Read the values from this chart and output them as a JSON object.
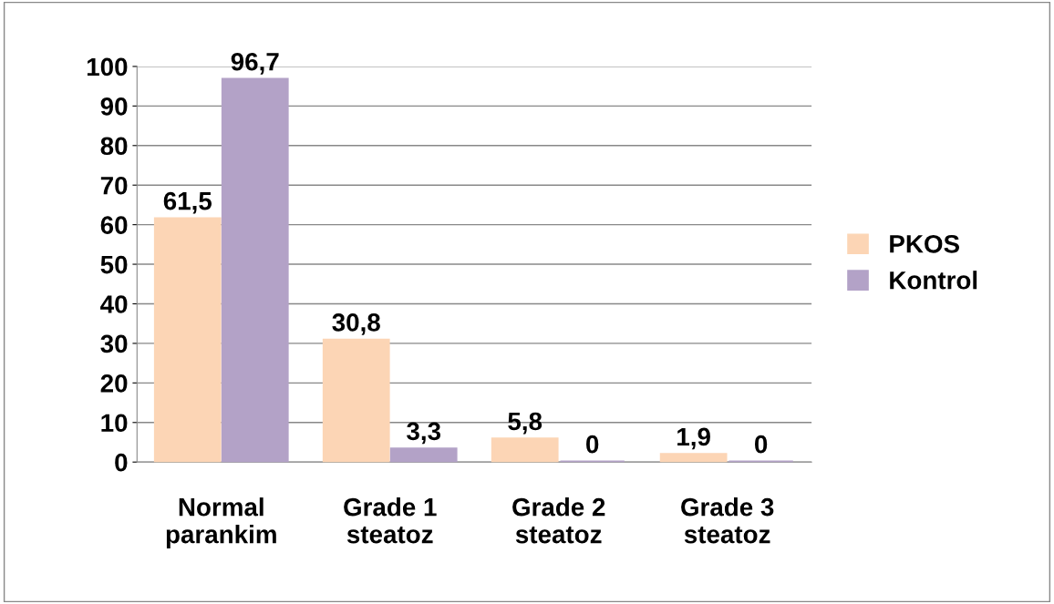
{
  "chart_data": {
    "type": "bar",
    "categories": [
      "Normal\nparankim",
      "Grade 1\nsteatoz",
      "Grade 2\nsteatoz",
      "Grade 3\nsteatoz"
    ],
    "series": [
      {
        "name": "PKOS",
        "color": "#fcd5b5",
        "values": [
          61.5,
          30.8,
          5.8,
          1.9
        ],
        "value_labels": [
          "61,5",
          "30,8",
          "5,8",
          "1,9"
        ]
      },
      {
        "name": "Kontrol",
        "color": "#b3a2c7",
        "values": [
          96.7,
          3.3,
          0,
          0
        ],
        "value_labels": [
          "96,7",
          "3,3",
          "0",
          "0"
        ]
      }
    ],
    "ylim": [
      0,
      100
    ],
    "yticks": [
      0,
      10,
      20,
      30,
      40,
      50,
      60,
      70,
      80,
      90,
      100
    ],
    "grid": "y",
    "legend": "right"
  }
}
